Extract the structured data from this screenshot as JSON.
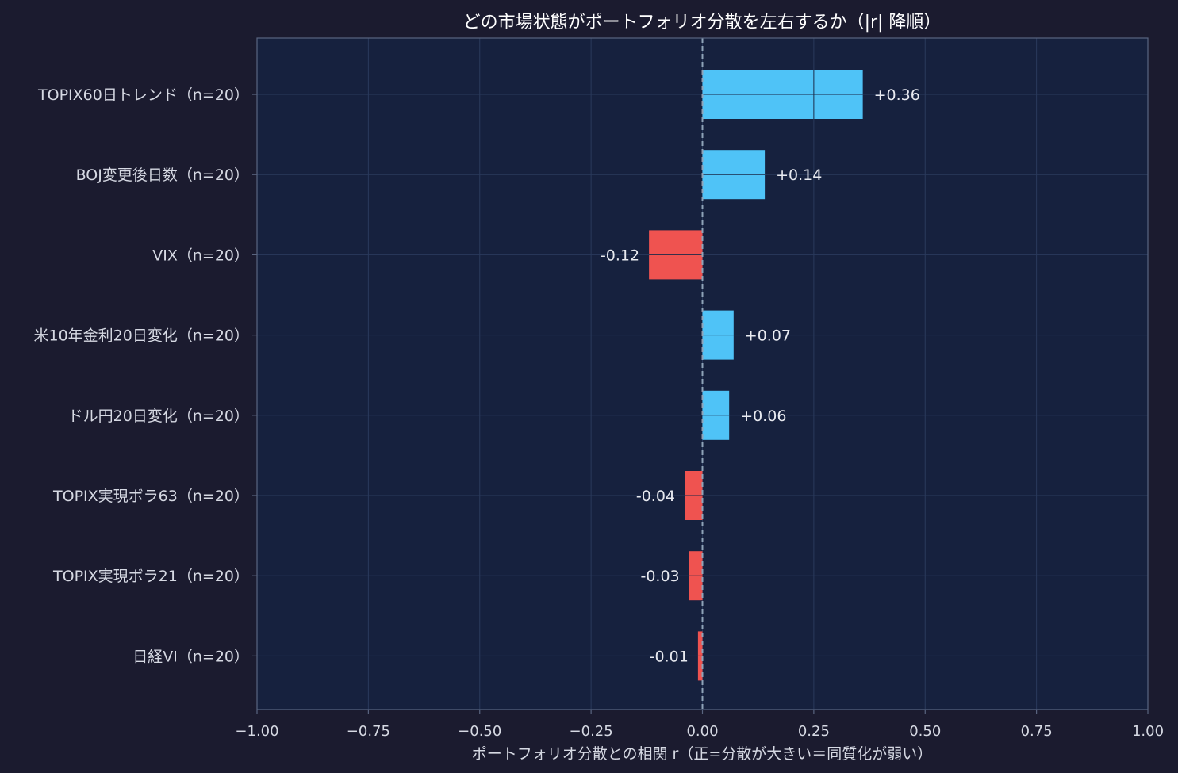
{
  "chart_data": {
    "type": "bar",
    "orientation": "horizontal",
    "title": "どの市場状態がポートフォリオ分散を左右するか（|r| 降順）",
    "xlabel": "ポートフォリオ分散との相関 r（正=分散が大きい＝同質化が弱い）",
    "ylabel": "",
    "xlim": [
      -1.0,
      1.0
    ],
    "xticks": [
      "−1.00",
      "−0.75",
      "−0.50",
      "−0.25",
      "0.00",
      "0.25",
      "0.50",
      "0.75",
      "1.00"
    ],
    "xtick_values": [
      -1.0,
      -0.75,
      -0.5,
      -0.25,
      0.0,
      0.25,
      0.5,
      0.75,
      1.0
    ],
    "grid": true,
    "categories": [
      "TOPIX60日トレンド（n=20）",
      "BOJ変更後日数（n=20）",
      "VIX（n=20）",
      "米10年金利20日変化（n=20）",
      "ドル円20日変化（n=20）",
      "TOPIX実現ボラ63（n=20）",
      "TOPIX実現ボラ21（n=20）",
      "日経VI（n=20）"
    ],
    "values": [
      0.36,
      0.14,
      -0.12,
      0.07,
      0.06,
      -0.04,
      -0.03,
      -0.01
    ],
    "value_labels": [
      "+0.36",
      "+0.14",
      "-0.12",
      "+0.07",
      "+0.06",
      "-0.04",
      "-0.03",
      "-0.01"
    ],
    "colors": {
      "positive": "#4fc3f7",
      "negative": "#ef5350"
    }
  },
  "colors": {
    "page_bg": "#1b1b2f",
    "plot_bg": "#16213e",
    "grid": "#2a3a5c",
    "spine": "#5a6580",
    "zero_line": "#8fa3b8"
  }
}
